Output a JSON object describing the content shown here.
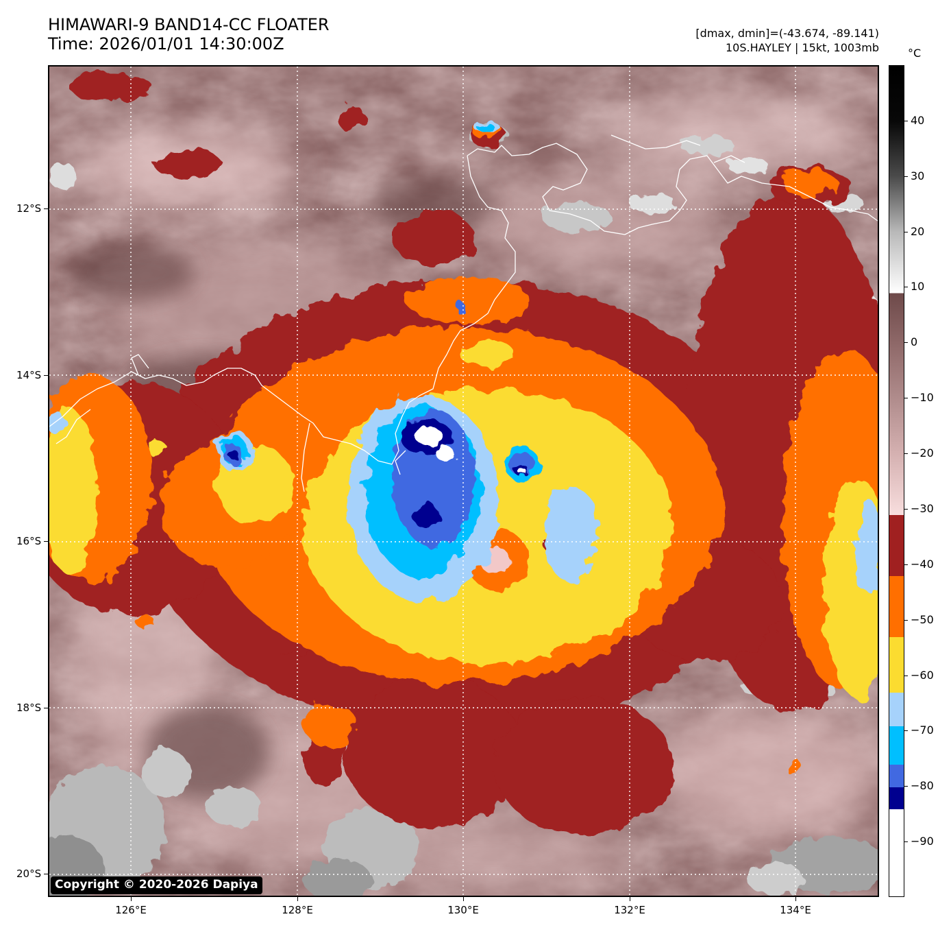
{
  "header": {
    "title_line1": "HIMAWARI-9 BAND14-CC FLOATER",
    "title_line2": "Time: 2026/01/01 14:30:00Z",
    "range_text": "[dmax, dmin]=(-43.674, -89.141)",
    "storm_text": "10S.HAYLEY | 15kt, 1003mb"
  },
  "map": {
    "copyright": "Copyright © 2020-2026 Dapiya",
    "lon_min": 125,
    "lon_max": 135,
    "lat_min": -20.25,
    "lat_max": -10.25,
    "grid": true,
    "lat_ticks": [
      {
        "value": -12,
        "label": "12°S"
      },
      {
        "value": -14,
        "label": "14°S"
      },
      {
        "value": -16,
        "label": "16°S"
      },
      {
        "value": -18,
        "label": "18°S"
      },
      {
        "value": -20,
        "label": "20°S"
      }
    ],
    "lon_ticks": [
      {
        "value": 126,
        "label": "126°E"
      },
      {
        "value": 128,
        "label": "128°E"
      },
      {
        "value": 130,
        "label": "130°E"
      },
      {
        "value": 132,
        "label": "132°E"
      },
      {
        "value": 134,
        "label": "134°E"
      }
    ]
  },
  "colorbar": {
    "unit": "°C",
    "min": -100,
    "max": 50,
    "ticks": [
      40,
      30,
      20,
      10,
      0,
      -10,
      -20,
      -30,
      -40,
      -50,
      -60,
      -70,
      -80,
      -90
    ],
    "tick_labels": [
      "40",
      "30",
      "20",
      "10",
      "0",
      "−10",
      "−20",
      "−30",
      "−40",
      "−50",
      "−60",
      "−70",
      "−80",
      "−90"
    ],
    "bands": [
      {
        "from": -100,
        "to": -84,
        "color": "#ffffff"
      },
      {
        "from": -84,
        "to": -80,
        "color": "#00008f"
      },
      {
        "from": -80,
        "to": -76,
        "color": "#4169e1"
      },
      {
        "from": -76,
        "to": -69,
        "color": "#00bfff"
      },
      {
        "from": -69,
        "to": -63,
        "color": "#a6d2fb"
      },
      {
        "from": -63,
        "to": -53,
        "color": "#fbdc30"
      },
      {
        "from": -53,
        "to": -42,
        "color": "#ff6f00"
      },
      {
        "from": -42,
        "to": -31,
        "color": "#a02020"
      }
    ],
    "gradient": [
      {
        "t": -31,
        "color": "#f8dede"
      },
      {
        "t": -20,
        "color": "#d5b1b1"
      },
      {
        "t": -10,
        "color": "#b08c8c"
      },
      {
        "t": 0,
        "color": "#8e6868"
      },
      {
        "t": 9,
        "color": "#6e4a4a"
      },
      {
        "t": 9,
        "color": "#ffffff"
      },
      {
        "t": 20,
        "color": "#b9b9b9"
      },
      {
        "t": 30,
        "color": "#4b4b4b"
      },
      {
        "t": 40,
        "color": "#080808"
      },
      {
        "t": 50,
        "color": "#000000"
      }
    ]
  }
}
